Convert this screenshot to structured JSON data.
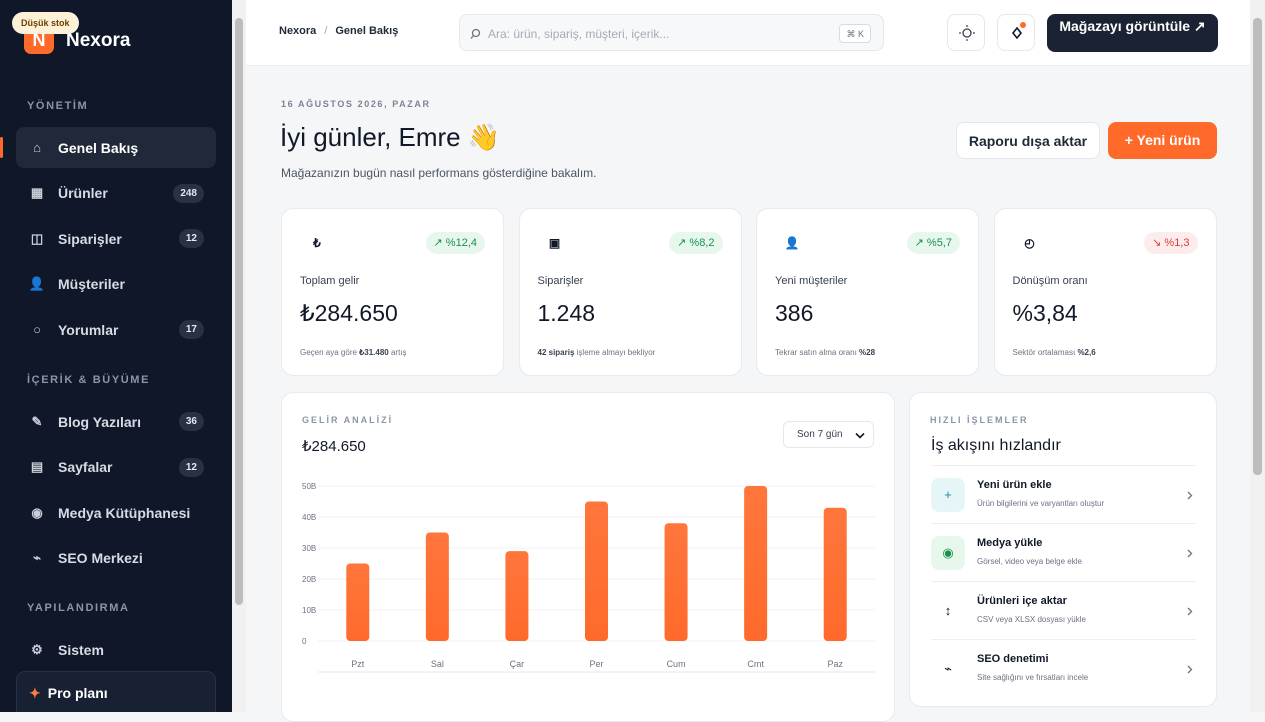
{
  "badge": "Düşük stok",
  "brand": {
    "logo": "N",
    "name": "Nexora"
  },
  "sidebar": {
    "sections": [
      {
        "title": "YÖNETİM",
        "items": [
          {
            "icon": "⌂",
            "label": "Genel Bakış",
            "active": true
          },
          {
            "icon": "▦",
            "label": "Ürünler",
            "count": "248"
          },
          {
            "icon": "◫",
            "label": "Siparişler",
            "count": "12"
          },
          {
            "icon": "👤",
            "label": "Müşteriler"
          },
          {
            "icon": "○",
            "label": "Yorumlar",
            "count": "17"
          }
        ]
      },
      {
        "title": "İÇERİK & BÜYÜME",
        "items": [
          {
            "icon": "✎",
            "label": "Blog Yazıları",
            "count": "36"
          },
          {
            "icon": "▤",
            "label": "Sayfalar",
            "count": "12"
          },
          {
            "icon": "◉",
            "label": "Medya Kütüphanesi"
          },
          {
            "icon": "⌁",
            "label": "SEO Merkezi"
          }
        ]
      },
      {
        "title": "YAPILANDIRMA",
        "items": [
          {
            "icon": "⚙",
            "label": "Sistem"
          }
        ]
      }
    ],
    "plan": {
      "icon": "✦",
      "title": "Pro planı"
    }
  },
  "header": {
    "breadcrumb": [
      "Nexora",
      "Genel Bakış"
    ],
    "separator": "/",
    "search_placeholder": "Ara: ürün, sipariş, müşteri, içerik...",
    "shortcut": "⌘ K",
    "store_button": "Mağazayı görüntüle ↗"
  },
  "greeting": {
    "date": "16 AĞUSTOS 2026, PAZAR",
    "title": "İyi günler, Emre 👋",
    "subtitle": "Mağazanızın bugün nasıl performans gösterdiğine bakalım.",
    "export_button": "Raporu dışa aktar",
    "new_button": "+ Yeni ürün"
  },
  "stats": [
    {
      "icon": "₺",
      "change": "↗ %12,4",
      "trend": "up",
      "label": "Toplam gelir",
      "value": "₺284.650",
      "note": [
        {
          "text": "Geçen aya göre"
        },
        {
          "text": "₺31.480",
          "strong": true
        },
        {
          "text": "artış"
        }
      ]
    },
    {
      "icon": "▣",
      "change": "↗ %8,2",
      "trend": "up",
      "label": "Siparişler",
      "value": "1.248",
      "note": [
        {
          "text": "42 sipariş",
          "strong": true
        },
        {
          "text": "işleme almayı bekliyor"
        }
      ]
    },
    {
      "icon": "👤",
      "change": "↗ %5,7",
      "trend": "up",
      "label": "Yeni müşteriler",
      "value": "386",
      "note": [
        {
          "text": "Tekrar satın alma oranı"
        },
        {
          "text": "%28",
          "strong": true
        }
      ]
    },
    {
      "icon": "◴",
      "change": "↘ %1,3",
      "trend": "down",
      "label": "Dönüşüm oranı",
      "value": "%3,84",
      "note": [
        {
          "text": "Sektör ortalaması"
        },
        {
          "text": "%2,6",
          "strong": true
        }
      ]
    }
  ],
  "chart_data": {
    "type": "bar",
    "title": "GELİR ANALİZİ",
    "total": "₺284.650",
    "period": "Son 7 gün",
    "categories": [
      "Pzt",
      "Sal",
      "Çar",
      "Per",
      "Cum",
      "Cmt",
      "Paz"
    ],
    "values": [
      25,
      35,
      29,
      45,
      38,
      50,
      43
    ],
    "color": "#ff6a2b",
    "ylim": [
      0,
      50
    ],
    "yticks": [
      0,
      {
        "value": 10,
        "label": "10B"
      },
      {
        "value": 20,
        "label": "20B"
      },
      {
        "value": 30,
        "label": "30B"
      },
      {
        "value": 40,
        "label": "40B"
      },
      {
        "value": 50,
        "label": "50B"
      }
    ],
    "grid": true
  },
  "quick_actions": {
    "title": "HIZLI İŞLEMLER",
    "heading": "İş akışını hızlandır",
    "items": [
      {
        "icon": "+",
        "title": "Yeni ürün ekle",
        "description": "Ürün bilgilerini ve varyantları oluştur"
      },
      {
        "icon": "◉",
        "title": "Medya yükle",
        "description": "Görsel, video veya belge ekle"
      },
      {
        "icon": "↕",
        "title": "Ürünleri içe aktar",
        "description": "CSV veya XLSX dosyası yükle"
      },
      {
        "icon": "⌁",
        "title": "SEO denetimi",
        "description": "Site sağlığını ve fırsatları incele"
      }
    ]
  }
}
